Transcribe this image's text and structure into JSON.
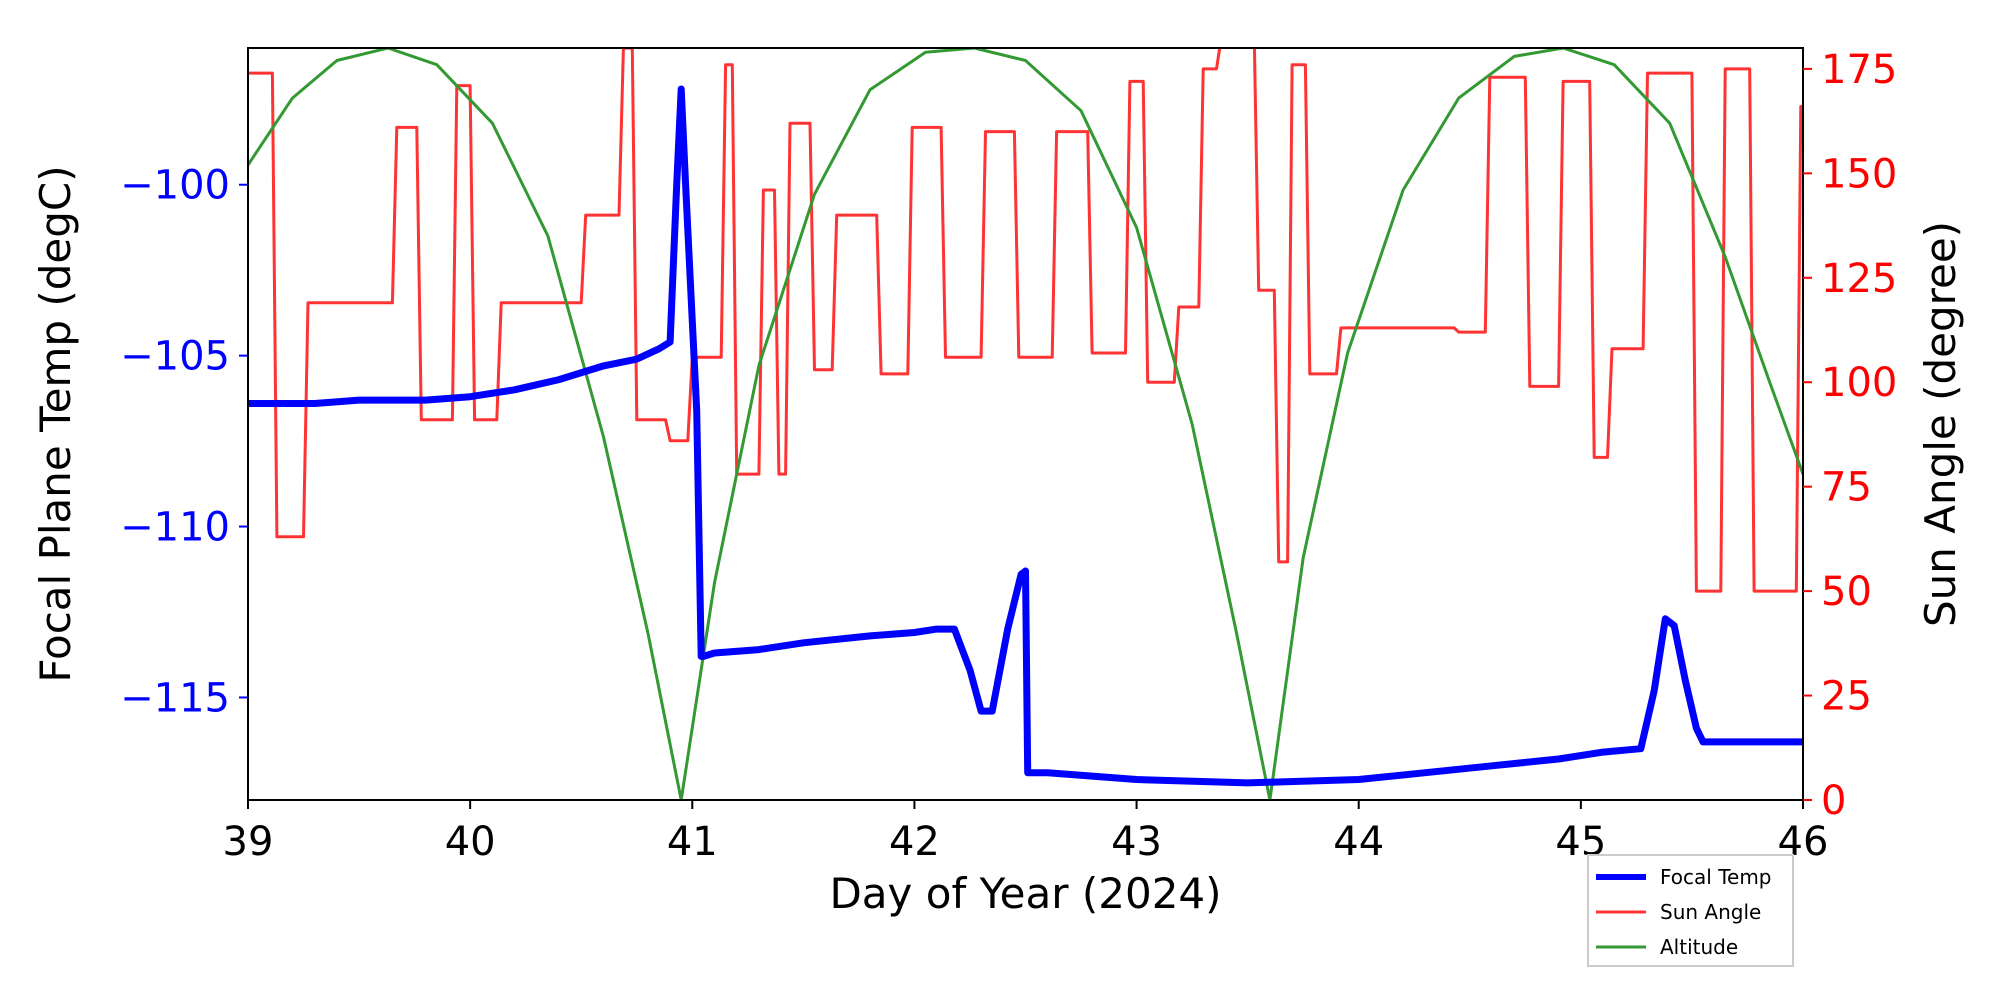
{
  "chart_data": {
    "type": "line",
    "title": "",
    "xlabel": "Day of Year (2024)",
    "ylabel_left": "Focal Plane Temp (degC)",
    "ylabel_right": "Sun Angle (degree)",
    "xlim": [
      39,
      46
    ],
    "ylim_left": [
      -118,
      -96
    ],
    "ylim_right": [
      0,
      180
    ],
    "x_ticks": [
      39,
      40,
      41,
      42,
      43,
      44,
      45,
      46
    ],
    "y_left_ticks": [
      -100,
      -105,
      -110,
      -115
    ],
    "y_right_ticks": [
      0,
      25,
      50,
      75,
      100,
      125,
      150,
      175
    ],
    "left_axis_color": "#0000ff",
    "right_axis_color": "#ff0000",
    "grid": false,
    "legend_position": "lower-right outside",
    "series": [
      {
        "name": "Focal Temp",
        "axis": "left",
        "color": "#0000ff",
        "x": [
          39.0,
          39.3,
          39.5,
          39.8,
          40.0,
          40.2,
          40.4,
          40.6,
          40.75,
          40.85,
          40.9,
          40.93,
          40.95,
          40.97,
          41.0,
          41.02,
          41.04,
          41.05,
          41.1,
          41.3,
          41.5,
          41.8,
          42.0,
          42.1,
          42.18,
          42.25,
          42.3,
          42.35,
          42.42,
          42.48,
          42.5,
          42.51,
          42.6,
          42.8,
          43.0,
          43.5,
          44.0,
          44.3,
          44.6,
          44.9,
          45.1,
          45.27,
          45.33,
          45.38,
          45.42,
          45.47,
          45.52,
          45.55,
          45.7,
          46.0
        ],
        "y": [
          -106.4,
          -106.4,
          -106.3,
          -106.3,
          -106.2,
          -106.0,
          -105.7,
          -105.3,
          -105.1,
          -104.8,
          -104.6,
          -100.0,
          -97.2,
          -100.0,
          -104.0,
          -106.6,
          -113.8,
          -113.8,
          -113.7,
          -113.6,
          -113.4,
          -113.2,
          -113.1,
          -113.0,
          -113.0,
          -114.2,
          -115.4,
          -115.4,
          -113.0,
          -111.4,
          -111.3,
          -117.2,
          -117.2,
          -117.3,
          -117.4,
          -117.5,
          -117.4,
          -117.2,
          -117.0,
          -116.8,
          -116.6,
          -116.5,
          -114.8,
          -112.7,
          -112.9,
          -114.5,
          -115.9,
          -116.3,
          -116.3,
          -116.3
        ]
      },
      {
        "name": "Sun Angle",
        "axis": "right",
        "color": "#ff3333",
        "x": [
          39.0,
          39.11,
          39.13,
          39.25,
          39.27,
          39.65,
          39.67,
          39.76,
          39.78,
          39.92,
          39.94,
          40.0,
          40.02,
          40.12,
          40.14,
          40.5,
          40.52,
          40.67,
          40.69,
          40.73,
          40.75,
          40.88,
          40.9,
          40.98,
          41.0,
          41.13,
          41.15,
          41.18,
          41.2,
          41.3,
          41.32,
          41.37,
          41.39,
          41.42,
          41.44,
          41.53,
          41.55,
          41.63,
          41.65,
          41.83,
          41.85,
          41.97,
          41.99,
          42.12,
          42.14,
          42.3,
          42.32,
          42.45,
          42.47,
          42.62,
          42.64,
          42.78,
          42.8,
          42.95,
          42.97,
          43.03,
          43.05,
          43.17,
          43.19,
          43.28,
          43.3,
          43.36,
          43.38,
          43.53,
          43.55,
          43.62,
          43.64,
          43.68,
          43.7,
          43.76,
          43.78,
          43.9,
          43.92,
          44.43,
          44.45,
          44.57,
          44.59,
          44.75,
          44.77,
          44.9,
          44.92,
          45.04,
          45.06,
          45.12,
          45.14,
          45.28,
          45.3,
          45.5,
          45.52,
          45.63,
          45.65,
          45.76,
          45.78,
          45.97,
          45.99
        ],
        "y": [
          174,
          174,
          63,
          63,
          119,
          119,
          161,
          161,
          91,
          91,
          171,
          171,
          91,
          91,
          119,
          119,
          140,
          140,
          180,
          180,
          91,
          91,
          86,
          86,
          106,
          106,
          176,
          176,
          78,
          78,
          146,
          146,
          78,
          78,
          162,
          162,
          103,
          103,
          140,
          140,
          102,
          102,
          161,
          161,
          106,
          106,
          160,
          160,
          106,
          106,
          160,
          160,
          107,
          107,
          172,
          172,
          100,
          100,
          118,
          118,
          175,
          175,
          182,
          182,
          122,
          122,
          57,
          57,
          176,
          176,
          102,
          102,
          113,
          113,
          112,
          112,
          173,
          173,
          99,
          99,
          172,
          172,
          82,
          82,
          108,
          108,
          174,
          174,
          50,
          50,
          175,
          175,
          50,
          50,
          166
        ]
      },
      {
        "name": "Altitude",
        "axis": "right",
        "color": "#339933",
        "x": [
          39.0,
          39.2,
          39.4,
          39.63,
          39.85,
          40.1,
          40.35,
          40.6,
          40.8,
          40.95,
          41.1,
          41.3,
          41.55,
          41.8,
          42.05,
          42.27,
          42.5,
          42.75,
          43.0,
          43.25,
          43.45,
          43.6,
          43.75,
          43.95,
          44.2,
          44.45,
          44.7,
          44.92,
          45.15,
          45.4,
          45.65,
          45.85,
          46.0
        ],
        "y": [
          152,
          168,
          177,
          180,
          176,
          162,
          135,
          87,
          40,
          0,
          52,
          104,
          145,
          170,
          179,
          180,
          177,
          165,
          137,
          90,
          40,
          0,
          58,
          107,
          146,
          168,
          178,
          180,
          176,
          162,
          130,
          100,
          78
        ]
      }
    ]
  }
}
